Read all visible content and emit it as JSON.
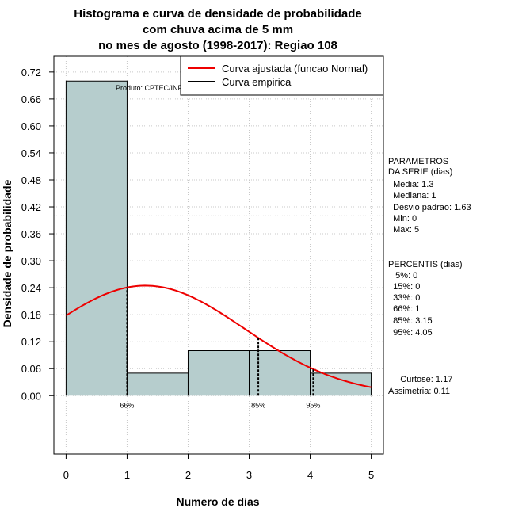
{
  "chart_data": {
    "type": "histogram",
    "title_lines": [
      "Histograma e curva de densidade de probabilidade",
      "com chuva acima de 5 mm",
      "no mes de agosto (1998-2017): Regiao 108"
    ],
    "xlabel": "Numero de dias",
    "ylabel": "Densidade de probabilidade",
    "xlim": [
      -0.2,
      5.2
    ],
    "ylim": [
      -0.13,
      0.755
    ],
    "x_ticks": [
      0,
      1,
      2,
      3,
      4,
      5
    ],
    "y_ticks": [
      "0.00",
      "0.06",
      "0.12",
      "0.18",
      "0.24",
      "0.30",
      "0.36",
      "0.42",
      "0.48",
      "0.54",
      "0.60",
      "0.66",
      "0.72"
    ],
    "bins": [
      {
        "x0": 0,
        "x1": 1,
        "density": 0.7
      },
      {
        "x0": 1,
        "x1": 2,
        "density": 0.05
      },
      {
        "x0": 2,
        "x1": 3,
        "density": 0.1
      },
      {
        "x0": 3,
        "x1": 4,
        "density": 0.1
      },
      {
        "x0": 4,
        "x1": 5,
        "density": 0.05
      }
    ],
    "fit": {
      "name": "Curva ajustada (funcao Normal)",
      "mean": 1.3,
      "sd": 1.63,
      "color": "#ee0000"
    },
    "empirical_name": "Curva empirica",
    "percentile_markers": [
      {
        "label": "66%",
        "x": 1
      },
      {
        "label": "85%",
        "x": 3.15
      },
      {
        "label": "95%",
        "x": 4.05
      }
    ],
    "hline_y": 0.4,
    "credit": "Produto: CPTEC/INPE",
    "bar_color": "#b6cdcd"
  },
  "stats": {
    "params_lines": [
      "PARAMETROS",
      "DA SERIE (dias)",
      "  Media: 1.3",
      "  Mediana: 1",
      "  Desvio padrao: 1.63",
      "  Min: 0",
      "  Max: 5"
    ],
    "percentis_lines": [
      "PERCENTIS (dias)",
      "   5%: 0",
      "  15%: 0",
      "  33%: 0",
      "  66%: 1",
      "  85%: 3.15",
      "  95%: 4.05"
    ],
    "shape_lines": [
      "     Curtose: 1.17",
      "Assimetria: 0.11"
    ]
  }
}
